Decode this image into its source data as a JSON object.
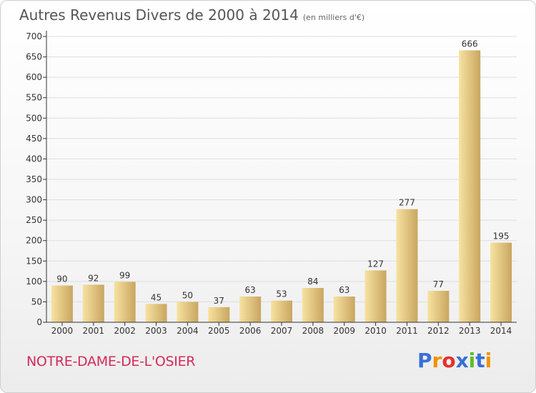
{
  "title": "Autres Revenus Divers de 2000 à 2014",
  "subtitle": "(en milliers d'€)",
  "location": "NOTRE-DAME-DE-L'OSIER",
  "brand": {
    "letters": [
      "P",
      "r",
      "o",
      "x",
      "i",
      "t",
      "i"
    ],
    "colors": [
      "#3a6fd8",
      "#f39200",
      "#e6312d",
      "#3a6fd8",
      "#5bbd2a",
      "#3a6fd8",
      "#f39200"
    ]
  },
  "colors": {
    "bar_light": "#f7e2a1",
    "bar_dark": "#c9a660",
    "axis": "#333333",
    "grid": "#dddddd",
    "text": "#333333"
  },
  "chart_data": {
    "type": "bar",
    "title": "Autres Revenus Divers de 2000 à 2014",
    "categories": [
      "2000",
      "2001",
      "2002",
      "2003",
      "2004",
      "2005",
      "2006",
      "2007",
      "2008",
      "2009",
      "2010",
      "2011",
      "2012",
      "2013",
      "2014"
    ],
    "values": [
      90,
      92,
      99,
      45,
      50,
      37,
      63,
      53,
      84,
      63,
      127,
      277,
      77,
      666,
      195
    ],
    "ylim": [
      0,
      700
    ],
    "yticks": [
      0,
      50,
      100,
      150,
      200,
      250,
      300,
      350,
      400,
      450,
      500,
      550,
      600,
      650,
      700
    ],
    "grid": true,
    "xlabel": "",
    "ylabel": ""
  }
}
